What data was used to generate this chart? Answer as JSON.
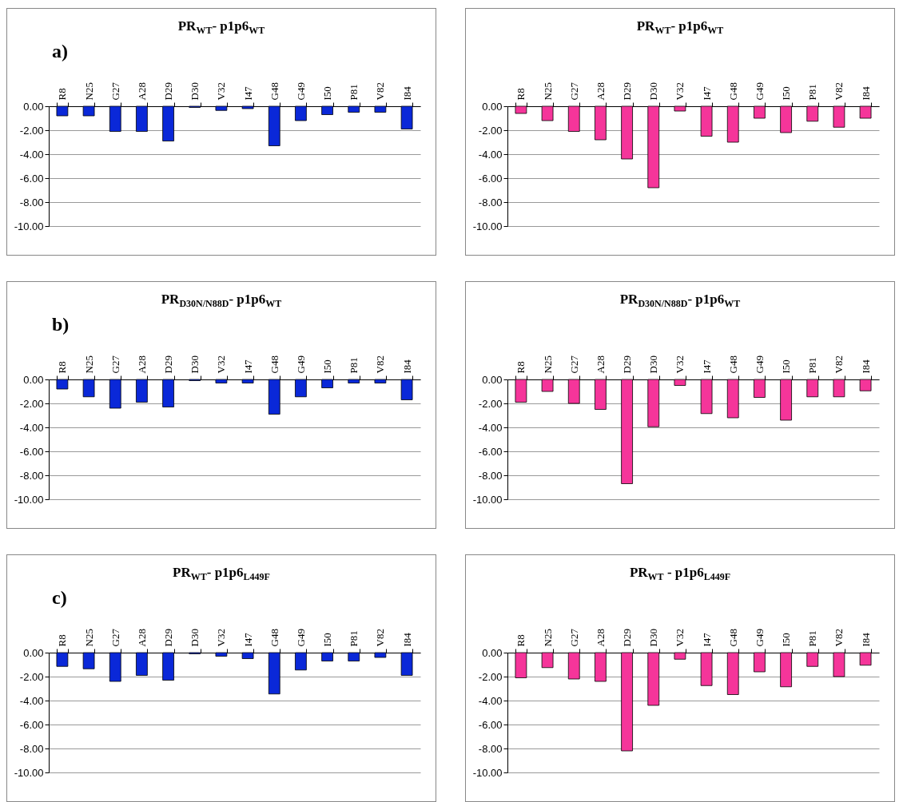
{
  "chart_data": [
    {
      "type": "bar",
      "title": "PR$_{WT}$- p1p6$_{WT}$",
      "annotations": [
        "a)"
      ],
      "categories": [
        "R8",
        "N25",
        "G27",
        "A28",
        "D29",
        "D30",
        "V32",
        "I47",
        "G48",
        "G49",
        "I50",
        "P81",
        "V82",
        "I84"
      ],
      "values": [
        -0.8,
        -0.8,
        -2.1,
        -2.1,
        -2.9,
        -0.1,
        -0.35,
        -0.2,
        -3.3,
        -1.2,
        -0.7,
        -0.5,
        -0.5,
        -1.9
      ],
      "color": "#0a28d8",
      "ylim": [
        -10,
        0
      ],
      "yticks": [
        {
          "value": 0,
          "label": "0.00"
        },
        {
          "value": -2,
          "label": "-2.00"
        },
        {
          "value": -4,
          "label": "-4.00"
        },
        {
          "value": -6,
          "label": "-6.00"
        },
        {
          "value": -8,
          "label": "-8.00"
        },
        {
          "value": -10,
          "label": "-10.00"
        }
      ],
      "grid": "y"
    },
    {
      "type": "bar",
      "title": "PR$_{WT}$- p1p6$_{WT}$",
      "categories": [
        "R8",
        "N25",
        "G27",
        "A28",
        "D29",
        "D30",
        "V32",
        "I47",
        "G48",
        "G49",
        "I50",
        "P81",
        "V82",
        "I84"
      ],
      "values": [
        -0.6,
        -1.2,
        -2.1,
        -2.8,
        -4.4,
        -6.8,
        -0.4,
        -2.5,
        -3.0,
        -1.0,
        -2.2,
        -1.25,
        -1.75,
        -1.0
      ],
      "color": "#f5359a",
      "ylim": [
        -10,
        0
      ],
      "yticks": [
        {
          "value": 0,
          "label": "0.00"
        },
        {
          "value": -2,
          "label": "-2.00"
        },
        {
          "value": -4,
          "label": "-4.00"
        },
        {
          "value": -6,
          "label": "-6.00"
        },
        {
          "value": -8,
          "label": "-8.00"
        },
        {
          "value": -10,
          "label": "-10.00"
        }
      ],
      "grid": "y"
    },
    {
      "type": "bar",
      "title": "PR$_{D30N/N88D}$- p1p6$_{WT}$",
      "annotations": [
        "b)"
      ],
      "categories": [
        "R8",
        "N25",
        "G27",
        "A28",
        "D29",
        "D30",
        "V32",
        "I47",
        "G48",
        "G49",
        "I50",
        "P81",
        "V82",
        "I84"
      ],
      "values": [
        -0.8,
        -1.45,
        -2.4,
        -1.9,
        -2.3,
        -0.1,
        -0.3,
        -0.3,
        -2.9,
        -1.45,
        -0.7,
        -0.3,
        -0.3,
        -1.7
      ],
      "color": "#0a28d8",
      "ylim": [
        -10,
        0
      ],
      "yticks": [
        {
          "value": 0,
          "label": "0.00"
        },
        {
          "value": -2,
          "label": "-2.00"
        },
        {
          "value": -4,
          "label": "-4.00"
        },
        {
          "value": -6,
          "label": "-6.00"
        },
        {
          "value": -8,
          "label": "-8.00"
        },
        {
          "value": -10,
          "label": "-10.00"
        }
      ],
      "grid": "y"
    },
    {
      "type": "bar",
      "title": "PR$_{D30N/N88D}$- p1p6$_{WT}$",
      "categories": [
        "R8",
        "N25",
        "G27",
        "A28",
        "D29",
        "D30",
        "V32",
        "I47",
        "G48",
        "G49",
        "I50",
        "P81",
        "V82",
        "I84"
      ],
      "values": [
        -1.9,
        -1.0,
        -2.0,
        -2.5,
        -8.7,
        -3.95,
        -0.5,
        -2.85,
        -3.2,
        -1.5,
        -3.4,
        -1.45,
        -1.45,
        -0.95
      ],
      "color": "#f5359a",
      "ylim": [
        -10,
        0
      ],
      "yticks": [
        {
          "value": 0,
          "label": "0.00"
        },
        {
          "value": -2,
          "label": "-2.00"
        },
        {
          "value": -4,
          "label": "-4.00"
        },
        {
          "value": -6,
          "label": "-6.00"
        },
        {
          "value": -8,
          "label": "-8.00"
        },
        {
          "value": -10,
          "label": "-10.00"
        }
      ],
      "grid": "y"
    },
    {
      "type": "bar",
      "title": "PR$_{WT}$- p1p6$_{L449F}$",
      "annotations": [
        "c)"
      ],
      "categories": [
        "R8",
        "N25",
        "G27",
        "A28",
        "D29",
        "D30",
        "V32",
        "I47",
        "G48",
        "G49",
        "I50",
        "P81",
        "V82",
        "I84"
      ],
      "values": [
        -1.15,
        -1.35,
        -2.4,
        -1.9,
        -2.3,
        -0.1,
        -0.3,
        -0.5,
        -3.45,
        -1.45,
        -0.7,
        -0.7,
        -0.4,
        -1.9
      ],
      "color": "#0a28d8",
      "ylim": [
        -10,
        0
      ],
      "yticks": [
        {
          "value": 0,
          "label": "0.00"
        },
        {
          "value": -2,
          "label": "-2.00"
        },
        {
          "value": -4,
          "label": "-4.00"
        },
        {
          "value": -6,
          "label": "-6.00"
        },
        {
          "value": -8,
          "label": "-8.00"
        },
        {
          "value": -10,
          "label": "-10.00"
        }
      ],
      "grid": "y"
    },
    {
      "type": "bar",
      "title": "PR$_{WT}$ - p1p6$_{L449F}$",
      "categories": [
        "R8",
        "N25",
        "G27",
        "A28",
        "D29",
        "D30",
        "V32",
        "I47",
        "G48",
        "G49",
        "I50",
        "P81",
        "V82",
        "I84"
      ],
      "values": [
        -2.1,
        -1.25,
        -2.2,
        -2.4,
        -8.2,
        -4.4,
        -0.55,
        -2.75,
        -3.5,
        -1.6,
        -2.85,
        -1.15,
        -2.0,
        -1.05
      ],
      "color": "#f5359a",
      "ylim": [
        -10,
        0
      ],
      "yticks": [
        {
          "value": 0,
          "label": "0.00"
        },
        {
          "value": -2,
          "label": "-2.00"
        },
        {
          "value": -4,
          "label": "-4.00"
        },
        {
          "value": -6,
          "label": "-6.00"
        },
        {
          "value": -8,
          "label": "-8.00"
        },
        {
          "value": -10,
          "label": "-10.00"
        }
      ],
      "grid": "y"
    }
  ]
}
